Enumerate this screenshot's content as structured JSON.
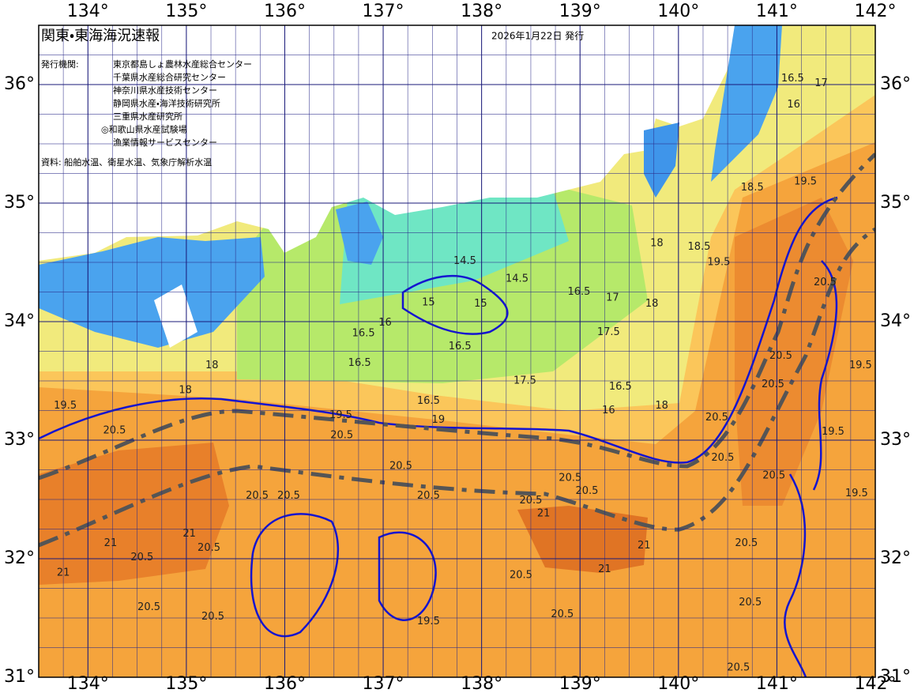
{
  "map": {
    "title": "関東・東海海況速報",
    "issue_date": "2026年1月22日 発行",
    "agencies_label": "発行機関:",
    "agencies": [
      "東京都島しょ農林水産総合センター",
      "千葉県水産総合研究センター",
      "神奈川県水産技術センター",
      "静岡県水産・海洋技術研究所",
      "三重県水産研究所",
      "◎和歌山県水産試験場",
      "漁業情報サービスセンター"
    ],
    "source": "資料: 船舶水温、衛星水温、気象庁解析水温",
    "lonlim": [
      133.5,
      142
    ],
    "latlim": [
      31,
      36.5
    ],
    "lon_ticks": [
      {
        "value": 134,
        "label": "134°"
      },
      {
        "value": 135,
        "label": "135°"
      },
      {
        "value": 136,
        "label": "136°"
      },
      {
        "value": 137,
        "label": "137°"
      },
      {
        "value": 138,
        "label": "138°"
      },
      {
        "value": 139,
        "label": "139°"
      },
      {
        "value": 140,
        "label": "140°"
      },
      {
        "value": 141,
        "label": "141°"
      },
      {
        "value": 142,
        "label": "142°"
      }
    ],
    "lat_ticks": [
      {
        "value": 31,
        "label": "31°"
      },
      {
        "value": 32,
        "label": "32°"
      },
      {
        "value": 33,
        "label": "33°"
      },
      {
        "value": 34,
        "label": "34°"
      },
      {
        "value": 35,
        "label": "35°"
      },
      {
        "value": 36,
        "label": "36°"
      }
    ],
    "contour_labels": [
      {
        "label": "16.5",
        "lon": 141.16,
        "lat": 36.05
      },
      {
        "label": "17",
        "lon": 141.45,
        "lat": 36.01
      },
      {
        "label": "16",
        "lon": 141.17,
        "lat": 35.83
      },
      {
        "label": "18.5",
        "lon": 140.75,
        "lat": 35.13
      },
      {
        "label": "19.5",
        "lon": 141.29,
        "lat": 35.18
      },
      {
        "label": "18",
        "lon": 139.78,
        "lat": 34.66
      },
      {
        "label": "18.5",
        "lon": 140.21,
        "lat": 34.63
      },
      {
        "label": "19.5",
        "lon": 140.41,
        "lat": 34.5
      },
      {
        "label": "18",
        "lon": 139.73,
        "lat": 34.15
      },
      {
        "label": "17.5",
        "lon": 139.29,
        "lat": 33.91
      },
      {
        "label": "17",
        "lon": 139.33,
        "lat": 34.2
      },
      {
        "label": "16.5",
        "lon": 139.41,
        "lat": 33.45
      },
      {
        "label": "16",
        "lon": 139.29,
        "lat": 33.25
      },
      {
        "label": "18",
        "lon": 139.83,
        "lat": 33.29
      },
      {
        "label": "20.5",
        "lon": 141.49,
        "lat": 34.33
      },
      {
        "label": "20.5",
        "lon": 141.04,
        "lat": 33.71
      },
      {
        "label": "20.5",
        "lon": 140.96,
        "lat": 33.47
      },
      {
        "label": "19.5",
        "lon": 141.85,
        "lat": 33.63
      },
      {
        "label": "19.5",
        "lon": 141.57,
        "lat": 33.07
      },
      {
        "label": "20.5",
        "lon": 140.39,
        "lat": 33.19
      },
      {
        "label": "20.5",
        "lon": 140.45,
        "lat": 32.85
      },
      {
        "label": "20.5",
        "lon": 140.97,
        "lat": 32.7
      },
      {
        "label": "20.5",
        "lon": 140.69,
        "lat": 32.13
      },
      {
        "label": "20.5",
        "lon": 140.73,
        "lat": 31.63
      },
      {
        "label": "20.5",
        "lon": 140.61,
        "lat": 31.08
      },
      {
        "label": "19.5",
        "lon": 141.81,
        "lat": 32.55
      },
      {
        "label": "16.5",
        "lon": 136.8,
        "lat": 33.9
      },
      {
        "label": "16",
        "lon": 137.02,
        "lat": 33.99
      },
      {
        "label": "16.5",
        "lon": 136.76,
        "lat": 33.65
      },
      {
        "label": "16.5",
        "lon": 137.78,
        "lat": 33.79
      },
      {
        "label": "17.5",
        "lon": 138.44,
        "lat": 33.5
      },
      {
        "label": "16.5",
        "lon": 137.46,
        "lat": 33.33
      },
      {
        "label": "19",
        "lon": 137.56,
        "lat": 33.17
      },
      {
        "label": "19.5",
        "lon": 136.57,
        "lat": 33.21
      },
      {
        "label": "20.5",
        "lon": 136.58,
        "lat": 33.04
      },
      {
        "label": "20.5",
        "lon": 134.27,
        "lat": 33.08
      },
      {
        "label": "19.5",
        "lon": 133.77,
        "lat": 33.29
      },
      {
        "label": "18",
        "lon": 135.26,
        "lat": 33.63
      },
      {
        "label": "18",
        "lon": 134.99,
        "lat": 33.42
      },
      {
        "label": "20.5",
        "lon": 137.18,
        "lat": 32.78
      },
      {
        "label": "20.5",
        "lon": 135.72,
        "lat": 32.53
      },
      {
        "label": "20.5",
        "lon": 136.04,
        "lat": 32.53
      },
      {
        "label": "20.5",
        "lon": 137.46,
        "lat": 32.53
      },
      {
        "label": "20.5",
        "lon": 138.9,
        "lat": 32.68
      },
      {
        "label": "20.5",
        "lon": 139.07,
        "lat": 32.57
      },
      {
        "label": "20.5",
        "lon": 138.5,
        "lat": 32.49
      },
      {
        "label": "21",
        "lon": 138.63,
        "lat": 32.38
      },
      {
        "label": "21",
        "lon": 134.23,
        "lat": 32.13
      },
      {
        "label": "20.5",
        "lon": 135.23,
        "lat": 32.09
      },
      {
        "label": "20.5",
        "lon": 134.55,
        "lat": 32.01
      },
      {
        "label": "21",
        "lon": 135.03,
        "lat": 32.21
      },
      {
        "label": "20.5",
        "lon": 138.4,
        "lat": 31.86
      },
      {
        "label": "20.5",
        "lon": 134.62,
        "lat": 31.59
      },
      {
        "label": "20.5",
        "lon": 135.27,
        "lat": 31.51
      },
      {
        "label": "20.5",
        "lon": 138.82,
        "lat": 31.53
      },
      {
        "label": "19.5",
        "lon": 137.46,
        "lat": 31.47
      },
      {
        "label": "21",
        "lon": 133.75,
        "lat": 31.88
      },
      {
        "label": "21",
        "lon": 139.25,
        "lat": 31.91
      },
      {
        "label": "21",
        "lon": 139.65,
        "lat": 32.11
      },
      {
        "label": "14.5",
        "lon": 137.83,
        "lat": 34.51
      },
      {
        "label": "14.5",
        "lon": 138.36,
        "lat": 34.36
      },
      {
        "label": "15",
        "lon": 137.46,
        "lat": 34.16
      },
      {
        "label": "15",
        "lon": 137.99,
        "lat": 34.15
      },
      {
        "label": "16.5",
        "lon": 138.99,
        "lat": 34.25
      }
    ]
  }
}
